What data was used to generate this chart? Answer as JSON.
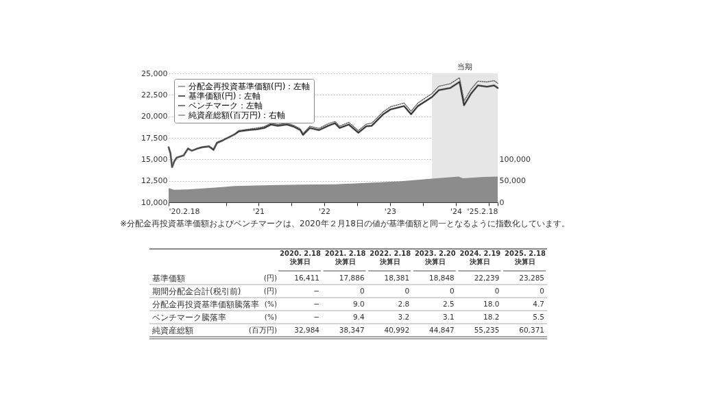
{
  "chart_data": [
    {
      "type": "line",
      "x": [
        "2020-02-18",
        "2020-02-28",
        "2020-03-08",
        "2020-03-21",
        "2020-04-03",
        "2020-05-11",
        "2020-06-05",
        "2020-06-25",
        "2020-07-27",
        "2020-08-21",
        "2020-09-29",
        "2020-10-24",
        "2020-11-12",
        "2020-12-14",
        "2021-01-21",
        "2021-02-18",
        "2021-03-14",
        "2021-05-04",
        "2021-06-24",
        "2021-08-01",
        "2021-09-08",
        "2021-10-16",
        "2021-12-06",
        "2022-01-13",
        "2022-02-18",
        "2022-03-05",
        "2022-04-12",
        "2022-06-02",
        "2022-07-23",
        "2022-08-30",
        "2022-09-24",
        "2022-11-14",
        "2023-01-06",
        "2023-02-20",
        "2023-03-21",
        "2023-05-25",
        "2023-07-03",
        "2023-09-17",
        "2023-10-26",
        "2023-12-03",
        "2024-02-19",
        "2024-03-28",
        "2024-05-31",
        "2024-07-21",
        "2024-08-15",
        "2024-09-23",
        "2024-10-31",
        "2024-12-21",
        "2025-01-29",
        "2025-02-18"
      ],
      "series": [
        {
          "name": "分配金再投資基準価額(円)：左軸",
          "color": "#8a8a8a",
          "values": [
            16400,
            15700,
            14100,
            14800,
            15200,
            15450,
            16250,
            16000,
            16250,
            16400,
            16500,
            16100,
            16900,
            17200,
            17600,
            17900,
            18250,
            18400,
            18500,
            18650,
            19050,
            18900,
            19050,
            18800,
            18400,
            17850,
            18650,
            18400,
            18900,
            19200,
            18650,
            19050,
            18100,
            18850,
            18900,
            20250,
            20800,
            21200,
            20250,
            21200,
            22250,
            23050,
            23300,
            24000,
            21300,
            22650,
            23600,
            23450,
            23600,
            23300
          ]
        },
        {
          "name": "基準価額(円)：左軸",
          "color": "#222222",
          "values": [
            16400,
            15700,
            14100,
            14800,
            15200,
            15450,
            16250,
            16000,
            16250,
            16400,
            16500,
            16100,
            16900,
            17200,
            17600,
            17900,
            18250,
            18400,
            18500,
            18650,
            19050,
            18900,
            19050,
            18800,
            18400,
            17850,
            18650,
            18400,
            18900,
            19200,
            18650,
            19050,
            18100,
            18850,
            18900,
            20250,
            20800,
            21200,
            20250,
            21200,
            22250,
            23050,
            23300,
            24000,
            21300,
            22650,
            23600,
            23450,
            23600,
            23300
          ]
        },
        {
          "name": "ベンチマーク：左軸",
          "color": "#555555",
          "line_style": "dotted",
          "values": [
            16400,
            15700,
            14150,
            14800,
            15200,
            15450,
            16300,
            16000,
            16300,
            16450,
            16550,
            16200,
            17000,
            17250,
            17650,
            17950,
            18350,
            18500,
            18650,
            18800,
            19200,
            19050,
            19200,
            18950,
            18550,
            18000,
            18850,
            18600,
            19150,
            19400,
            18850,
            19300,
            18350,
            19100,
            19200,
            20550,
            21100,
            21550,
            20600,
            21550,
            22650,
            23500,
            23800,
            24500,
            21800,
            23150,
            24100,
            24000,
            24150,
            23850
          ]
        },
        {
          "name": "純資産総額(百万円)：右軸",
          "type": "area",
          "axis": "y2",
          "color": "#8c8c8c",
          "x": [
            "2020-02-18",
            "2020-03-19",
            "2020-06-01",
            "2020-12-01",
            "2021-02-18",
            "2021-09-01",
            "2022-02-18",
            "2022-09-01",
            "2023-02-20",
            "2023-09-01",
            "2024-02-19",
            "2024-07-15",
            "2024-08-10",
            "2024-12-01",
            "2025-02-18"
          ],
          "values": [
            33000,
            29000,
            30000,
            35000,
            38000,
            40000,
            41000,
            42000,
            45000,
            49000,
            55000,
            60000,
            56000,
            59000,
            60000
          ]
        }
      ],
      "xlim": [
        "2020-02-18",
        "2025-02-18"
      ],
      "xticks": [
        {
          "value": "2020-02-18",
          "label": "'20.2.18"
        },
        {
          "value": "2021-01-01",
          "label": null
        },
        {
          "value": "2021-07-01",
          "label": "'21"
        },
        {
          "value": "2022-01-01",
          "label": null
        },
        {
          "value": "2022-07-01",
          "label": "'22"
        },
        {
          "value": "2023-01-01",
          "label": null
        },
        {
          "value": "2023-07-01",
          "label": "'23"
        },
        {
          "value": "2024-01-01",
          "label": null
        },
        {
          "value": "2024-07-01",
          "label": "'24"
        },
        {
          "value": "2025-01-01",
          "label": null
        },
        {
          "value": "2025-02-18",
          "label": "'25.2.18"
        }
      ],
      "ylim": [
        10000,
        25000
      ],
      "yticks": [
        {
          "value": 10000,
          "label": "10,000"
        },
        {
          "value": 12500,
          "label": "12,500"
        },
        {
          "value": 15000,
          "label": "15,000"
        },
        {
          "value": 17500,
          "label": "17,500"
        },
        {
          "value": 20000,
          "label": "20,000"
        },
        {
          "value": 22500,
          "label": "22,500"
        },
        {
          "value": 25000,
          "label": "25,000"
        }
      ],
      "y2lim": [
        0,
        300000
      ],
      "y2ticks": [
        0,
        {
          "value": 50000,
          "label": "50,000"
        },
        {
          "value": 100000,
          "label": "100,000"
        }
      ],
      "bands": [
        {
          "axis": "x",
          "from": "2024-02-19",
          "to": "2025-02-18",
          "label": "当期",
          "color": "#e6e6e6"
        }
      ],
      "grid": "y",
      "legend": "top left",
      "annotations": [
        "※分配金再投資基準価額およびベンチマークは、2020年２月18日の値が基準価額と同一となるように指数化しています。"
      ]
    },
    {
      "type": "other",
      "categories": [
        "2020. 2.18\n決算日",
        "2021. 2.18\n決算日",
        "2022. 2.18\n決算日",
        "2023. 2.20\n決算日",
        "2024. 2.19\n決算日",
        "2025. 2.18\n決算日"
      ],
      "y_categories": [
        "基準価額",
        "期間分配金合計(税引前)",
        "分配金再投資基準価額騰落率",
        "ベンチマーク騰落率",
        "純資産総額"
      ],
      "y2_categories": [
        "(円)",
        "(円)",
        "(%)",
        "(%)",
        "(百万円)"
      ],
      "cell_labels": [
        [
          "16,411",
          "17,886",
          "18,381",
          "18,848",
          "22,239",
          "23,285"
        ],
        [
          "−",
          "0",
          "0",
          "0",
          "0",
          "0"
        ],
        [
          "−",
          "9.0",
          "2.8",
          "2.5",
          "18.0",
          "4.7"
        ],
        [
          "−",
          "9.4",
          "3.2",
          "3.1",
          "18.2",
          "5.5"
        ],
        [
          "32,984",
          "38,347",
          "40,992",
          "44,847",
          "55,235",
          "60,371"
        ]
      ]
    }
  ]
}
